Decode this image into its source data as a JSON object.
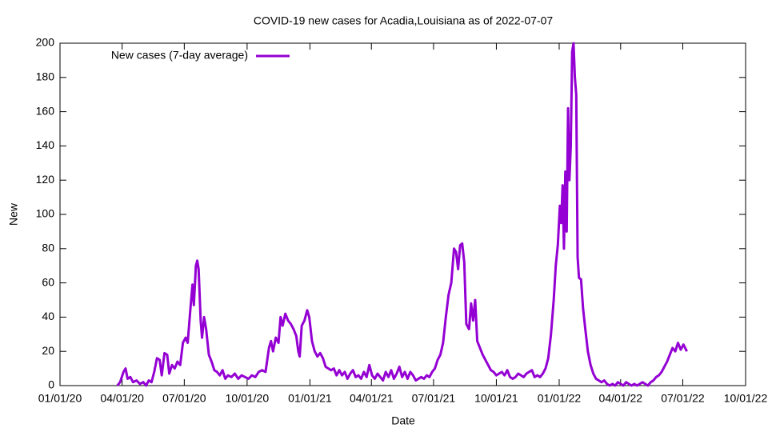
{
  "chart_data": {
    "type": "line",
    "title": "COVID-19 new cases for Acadia,Louisiana as of 2022-07-07",
    "xlabel": "Date",
    "ylabel": "New",
    "xlim": [
      "01/01/20",
      "10/01/22"
    ],
    "xticks": [
      "01/01/20",
      "04/01/20",
      "07/01/20",
      "10/01/20",
      "01/01/21",
      "04/01/21",
      "07/01/21",
      "10/01/21",
      "01/01/22",
      "04/01/22",
      "07/01/22",
      "10/01/22"
    ],
    "ylim": [
      0,
      200
    ],
    "yticks": [
      0,
      20,
      40,
      60,
      80,
      100,
      120,
      140,
      160,
      180,
      200
    ],
    "legend": "top-left",
    "x": [
      "03/25/20",
      "03/29/20",
      "04/03/20",
      "04/06/20",
      "04/09/20",
      "04/13/20",
      "04/17/20",
      "04/22/20",
      "04/27/20",
      "05/02/20",
      "05/06/20",
      "05/10/20",
      "05/14/20",
      "05/18/20",
      "05/22/20",
      "05/26/20",
      "05/29/20",
      "06/02/20",
      "06/06/20",
      "06/09/20",
      "06/13/20",
      "06/17/20",
      "06/21/20",
      "06/25/20",
      "06/29/20",
      "07/03/20",
      "07/06/20",
      "07/10/20",
      "07/13/20",
      "07/15/20",
      "07/18/20",
      "07/20/20",
      "07/22/20",
      "07/25/20",
      "07/27/20",
      "07/30/20",
      "08/02/20",
      "08/06/20",
      "08/10/20",
      "08/14/20",
      "08/18/20",
      "08/22/20",
      "08/26/20",
      "08/30/20",
      "09/03/20",
      "09/08/20",
      "09/13/20",
      "09/18/20",
      "09/23/20",
      "09/28/20",
      "10/03/20",
      "10/08/20",
      "10/13/20",
      "10/18/20",
      "10/23/20",
      "10/28/20",
      "11/02/20",
      "11/05/20",
      "11/08/20",
      "11/12/20",
      "11/16/20",
      "11/19/20",
      "11/22/20",
      "11/26/20",
      "11/30/20",
      "12/04/20",
      "12/08/20",
      "12/12/20",
      "12/15/20",
      "12/17/20",
      "12/20/20",
      "12/24/20",
      "12/28/20",
      "12/31/20",
      "01/04/21",
      "01/08/21",
      "01/12/21",
      "01/16/21",
      "01/20/21",
      "01/24/21",
      "01/28/21",
      "02/01/21",
      "02/05/21",
      "02/09/21",
      "02/13/21",
      "02/17/21",
      "02/21/21",
      "02/25/21",
      "03/01/21",
      "03/05/21",
      "03/09/21",
      "03/13/21",
      "03/17/21",
      "03/21/21",
      "03/25/21",
      "03/29/21",
      "04/02/21",
      "04/06/21",
      "04/10/21",
      "04/14/21",
      "04/18/21",
      "04/22/21",
      "04/26/21",
      "04/30/21",
      "05/04/21",
      "05/08/21",
      "05/12/21",
      "05/16/21",
      "05/20/21",
      "05/24/21",
      "05/28/21",
      "06/01/21",
      "06/05/21",
      "06/09/21",
      "06/13/21",
      "06/17/21",
      "06/21/21",
      "06/25/21",
      "06/29/21",
      "07/03/21",
      "07/07/21",
      "07/11/21",
      "07/15/21",
      "07/19/21",
      "07/23/21",
      "07/27/21",
      "07/31/21",
      "08/03/21",
      "08/06/21",
      "08/09/21",
      "08/12/21",
      "08/15/21",
      "08/18/21",
      "08/22/21",
      "08/25/21",
      "08/28/21",
      "08/31/21",
      "09/03/21",
      "09/07/21",
      "09/11/21",
      "09/15/21",
      "09/19/21",
      "09/23/21",
      "09/27/21",
      "10/01/21",
      "10/05/21",
      "10/09/21",
      "10/13/21",
      "10/17/21",
      "10/21/21",
      "10/25/21",
      "10/29/21",
      "11/02/21",
      "11/06/21",
      "11/10/21",
      "11/14/21",
      "11/18/21",
      "11/22/21",
      "11/26/21",
      "11/30/21",
      "12/04/21",
      "12/08/21",
      "12/12/21",
      "12/16/21",
      "12/20/21",
      "12/24/21",
      "12/27/21",
      "12/30/21",
      "01/02/22",
      "01/04/22",
      "01/06/22",
      "01/08/22",
      "01/10/22",
      "01/12/22",
      "01/14/22",
      "01/16/22",
      "01/18/22",
      "01/20/22",
      "01/22/22",
      "01/24/22",
      "01/26/22",
      "01/28/22",
      "01/30/22",
      "02/02/22",
      "02/05/22",
      "02/08/22",
      "02/12/22",
      "02/16/22",
      "02/20/22",
      "02/24/22",
      "02/28/22",
      "03/04/22",
      "03/08/22",
      "03/12/22",
      "03/16/22",
      "03/20/22",
      "03/24/22",
      "03/28/22",
      "04/01/22",
      "04/05/22",
      "04/09/22",
      "04/13/22",
      "04/17/22",
      "04/21/22",
      "04/25/22",
      "04/29/22",
      "05/03/22",
      "05/07/22",
      "05/11/22",
      "05/15/22",
      "05/19/22",
      "05/23/22",
      "05/27/22",
      "05/31/22",
      "06/04/22",
      "06/08/22",
      "06/12/22",
      "06/16/22",
      "06/20/22",
      "06/24/22",
      "06/28/22",
      "07/02/22",
      "07/07/22"
    ],
    "series": [
      {
        "name": "New cases (7-day average)",
        "color": "#9400d3",
        "values": [
          0,
          2,
          8,
          10,
          4,
          5,
          2,
          3,
          1,
          2,
          0,
          3,
          2,
          8,
          16,
          15,
          6,
          19,
          18,
          7,
          12,
          10,
          14,
          12,
          25,
          28,
          25,
          45,
          59,
          47,
          70,
          73,
          68,
          38,
          28,
          40,
          33,
          18,
          14,
          9,
          8,
          6,
          9,
          4,
          6,
          5,
          7,
          4,
          6,
          5,
          4,
          6,
          5,
          8,
          9,
          8,
          22,
          26,
          20,
          28,
          25,
          40,
          35,
          42,
          38,
          36,
          33,
          29,
          20,
          17,
          35,
          38,
          44,
          40,
          26,
          20,
          17,
          19,
          16,
          11,
          10,
          9,
          10,
          6,
          9,
          6,
          8,
          4,
          7,
          9,
          5,
          6,
          4,
          8,
          5,
          12,
          6,
          4,
          7,
          5,
          3,
          8,
          5,
          9,
          4,
          7,
          11,
          5,
          8,
          4,
          8,
          6,
          3,
          4,
          5,
          4,
          6,
          5,
          8,
          10,
          15,
          18,
          25,
          40,
          53,
          60,
          80,
          78,
          68,
          82,
          83,
          72,
          36,
          33,
          48,
          38,
          50,
          26,
          22,
          18,
          15,
          12,
          9,
          8,
          6,
          7,
          8,
          6,
          9,
          5,
          4,
          5,
          7,
          6,
          5,
          7,
          8,
          9,
          5,
          6,
          5,
          7,
          10,
          16,
          30,
          50,
          70,
          82,
          105,
          95,
          117,
          80,
          125,
          90,
          162,
          120,
          140,
          195,
          200,
          180,
          170,
          75,
          63,
          62,
          45,
          34,
          20,
          12,
          7,
          4,
          3,
          2,
          3,
          1,
          0,
          1,
          0,
          2,
          1,
          0,
          2,
          1,
          0,
          1,
          0,
          1,
          2,
          1,
          0,
          2,
          3,
          5,
          6,
          8,
          11,
          14,
          18,
          22,
          20,
          25,
          21,
          24,
          20
        ]
      }
    ]
  }
}
